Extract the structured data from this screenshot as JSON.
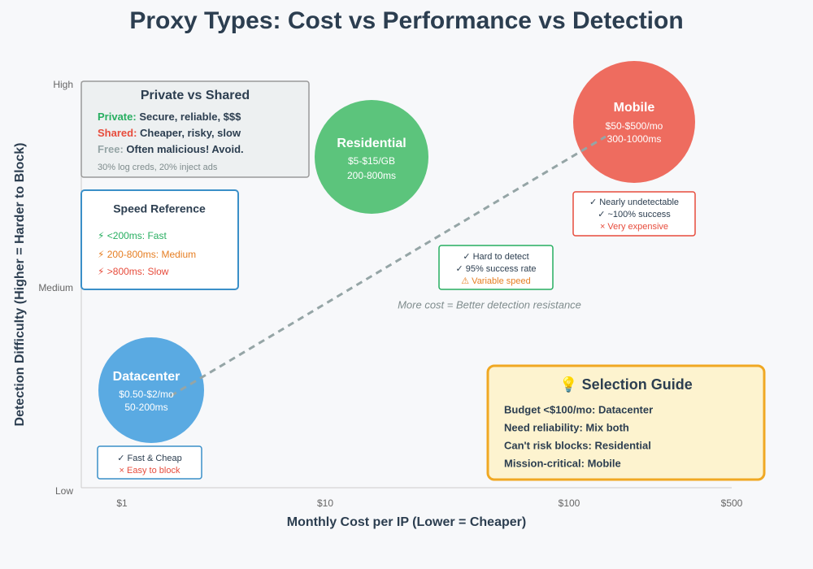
{
  "header": {
    "title": "Proxy Types: Cost vs Performance vs Detection"
  },
  "axes": {
    "x_title": "Monthly Cost per IP (Lower = Cheaper)",
    "y_title": "Detection Difficulty (Higher = Harder to Block)",
    "x_labels": [
      "$1",
      "$10",
      "$100",
      "$500"
    ],
    "y_labels": [
      "High",
      "Medium",
      "Low"
    ]
  },
  "nodes": [
    {
      "name": "Residential",
      "price": "$5-$15/GB",
      "latency": "200-800ms"
    },
    {
      "name": "Mobile",
      "price": "$50-$500/mo",
      "latency": "300-1000ms"
    },
    {
      "name": "Datacenter",
      "price": "$0.50-$2/mo",
      "latency": "50-200ms"
    }
  ],
  "callouts": [
    {
      "lines": [
        "✓ Hard to detect",
        "✓ 95% success rate",
        "⚠ Variable speed"
      ]
    },
    {
      "lines": [
        "✓ Nearly undetectable",
        "✓ ~100% success",
        "× Very expensive"
      ]
    },
    {
      "lines": [
        "✓ Fast & Cheap",
        "× Easy to block"
      ]
    }
  ],
  "annotation": "More cost = Better detection resistance",
  "private_box": {
    "title": "Private vs Shared",
    "rows": [
      {
        "label": "Private:",
        "text": "Secure, reliable, $$$"
      },
      {
        "label": "Shared:",
        "text": "Cheaper, risky, slow"
      },
      {
        "label": "Free:",
        "text": "Often malicious! Avoid."
      }
    ],
    "note": "30% log creds, 20% inject ads"
  },
  "speed_box": {
    "title": "Speed Reference",
    "items": [
      "⚡ <200ms: Fast",
      "⚡ 200-800ms: Medium",
      "⚡ >800ms: Slow"
    ]
  },
  "guide_box": {
    "title": "💡 Selection Guide",
    "items": [
      "Budget <$100/mo: Datacenter",
      "Need reliability: Mix both",
      "Can't risk blocks: Residential",
      "Mission-critical: Mobile"
    ]
  }
}
